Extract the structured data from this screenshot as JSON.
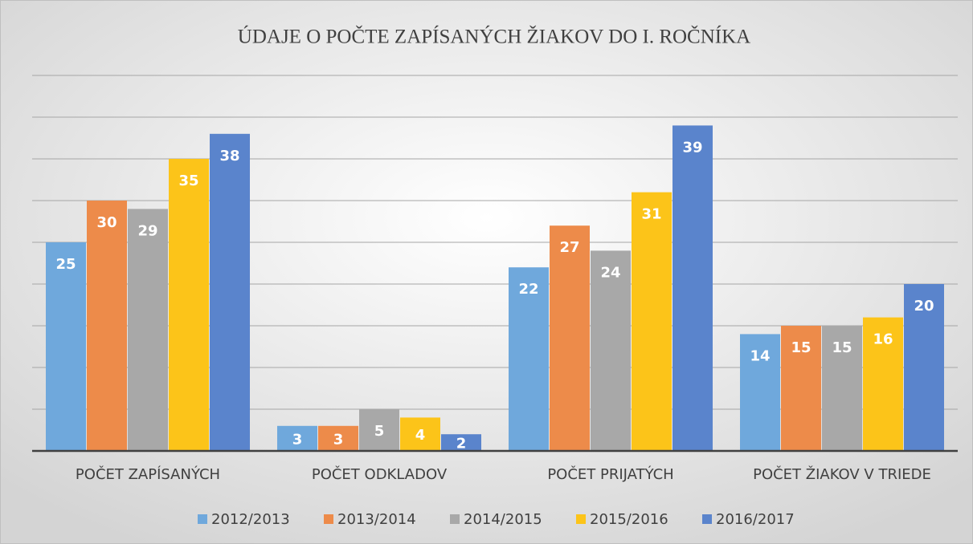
{
  "chart_data": {
    "type": "bar",
    "title": "ÚDAJE O POČTE ZAPÍSANÝCH ŽIAKOV DO I. ROČNÍKA",
    "categories": [
      "POČET ZAPÍSANÝCH",
      "POČET ODKLADOV",
      "POČET PRIJATÝCH",
      "POČET ŽIAKOV V TRIEDE"
    ],
    "series": [
      {
        "name": "2012/2013",
        "color": "#6fa8dc",
        "values": [
          25,
          3,
          22,
          14
        ]
      },
      {
        "name": "2013/2014",
        "color": "#ed8b4a",
        "values": [
          30,
          3,
          27,
          15
        ]
      },
      {
        "name": "2014/2015",
        "color": "#a8a8a8",
        "values": [
          29,
          5,
          24,
          15
        ]
      },
      {
        "name": "2015/2016",
        "color": "#fcc419",
        "values": [
          35,
          4,
          31,
          16
        ]
      },
      {
        "name": "2016/2017",
        "color": "#5a84cc",
        "values": [
          38,
          2,
          39,
          20
        ]
      }
    ],
    "ylim": [
      0,
      45
    ],
    "yticks": [
      0,
      5,
      10,
      15,
      20,
      25,
      30,
      35,
      40,
      45
    ],
    "grid": true,
    "legend": "bottom"
  }
}
